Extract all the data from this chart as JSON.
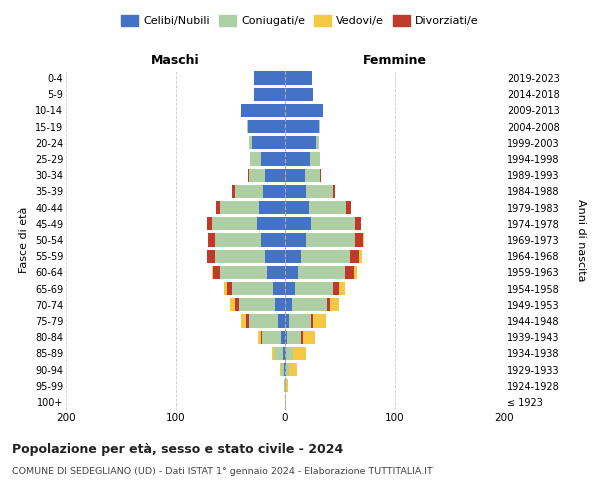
{
  "age_groups": [
    "100+",
    "95-99",
    "90-94",
    "85-89",
    "80-84",
    "75-79",
    "70-74",
    "65-69",
    "60-64",
    "55-59",
    "50-54",
    "45-49",
    "40-44",
    "35-39",
    "30-34",
    "25-29",
    "20-24",
    "15-19",
    "10-14",
    "5-9",
    "0-4"
  ],
  "birth_years": [
    "≤ 1923",
    "1924-1928",
    "1929-1933",
    "1934-1938",
    "1939-1943",
    "1944-1948",
    "1949-1953",
    "1954-1958",
    "1959-1963",
    "1964-1968",
    "1969-1973",
    "1974-1978",
    "1979-1983",
    "1984-1988",
    "1989-1993",
    "1994-1998",
    "1999-2003",
    "2004-2008",
    "2009-2013",
    "2014-2018",
    "2019-2023"
  ],
  "male": {
    "celibi": [
      0,
      0,
      1,
      2,
      4,
      6,
      9,
      11,
      16,
      18,
      22,
      26,
      24,
      20,
      18,
      22,
      30,
      34,
      40,
      28,
      28
    ],
    "coniugati": [
      0,
      1,
      3,
      8,
      17,
      27,
      33,
      37,
      43,
      46,
      42,
      41,
      35,
      26,
      15,
      10,
      3,
      1,
      0,
      0,
      0
    ],
    "vedovi": [
      0,
      0,
      1,
      2,
      3,
      4,
      4,
      3,
      1,
      0,
      0,
      0,
      0,
      0,
      0,
      0,
      0,
      0,
      0,
      0,
      0
    ],
    "divorziati": [
      0,
      0,
      0,
      0,
      1,
      3,
      4,
      5,
      7,
      7,
      6,
      4,
      4,
      2,
      1,
      0,
      0,
      0,
      0,
      0,
      0
    ]
  },
  "female": {
    "nubili": [
      0,
      0,
      1,
      1,
      2,
      4,
      6,
      9,
      12,
      15,
      19,
      24,
      22,
      19,
      18,
      23,
      28,
      31,
      35,
      26,
      25
    ],
    "coniugate": [
      0,
      1,
      3,
      6,
      13,
      20,
      32,
      35,
      43,
      44,
      45,
      40,
      34,
      25,
      14,
      9,
      3,
      1,
      0,
      0,
      0
    ],
    "vedove": [
      1,
      2,
      7,
      12,
      11,
      11,
      8,
      6,
      3,
      2,
      1,
      0,
      0,
      0,
      0,
      0,
      0,
      0,
      0,
      0,
      0
    ],
    "divorziate": [
      0,
      0,
      0,
      0,
      1,
      2,
      3,
      5,
      8,
      9,
      7,
      5,
      4,
      2,
      1,
      0,
      0,
      0,
      0,
      0,
      0
    ]
  },
  "colors": {
    "celibi": "#4472C4",
    "coniugati": "#ADCFA3",
    "vedovi": "#F5C842",
    "divorziati": "#C0392B"
  },
  "xlim": 200,
  "title": "Popolazione per età, sesso e stato civile - 2024",
  "subtitle": "COMUNE DI SEDEGLIANO (UD) - Dati ISTAT 1° gennaio 2024 - Elaborazione TUTTITALIA.IT",
  "xlabel_left": "Maschi",
  "xlabel_right": "Femmine",
  "ylabel": "Fasce di età",
  "ylabel_right": "Anni di nascita",
  "background_color": "#ffffff",
  "grid_color": "#cccccc"
}
